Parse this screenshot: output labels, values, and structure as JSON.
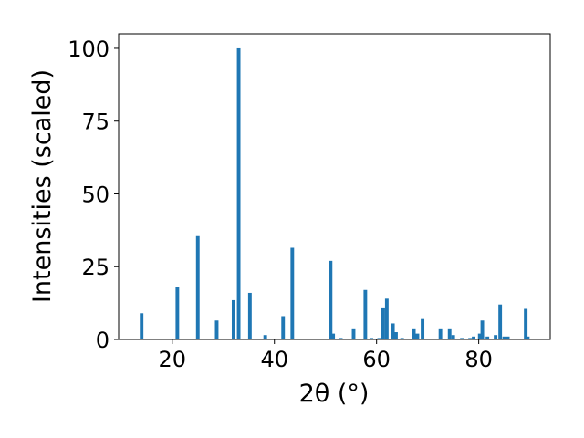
{
  "chart_data": {
    "type": "bar",
    "title": "",
    "xlabel": "2θ (°)",
    "ylabel": "Intensities (scaled)",
    "xlim": [
      9.5,
      94
    ],
    "ylim": [
      0,
      105
    ],
    "xticks": [
      20,
      40,
      60,
      80
    ],
    "yticks": [
      0,
      25,
      50,
      75,
      100
    ],
    "grid": false,
    "legend": "none",
    "bar_color": "#1f77b4",
    "bar_width": 0.7,
    "x": [
      14.0,
      21.0,
      25.0,
      28.7,
      32.0,
      33.0,
      35.2,
      38.2,
      41.7,
      43.5,
      51.0,
      51.5,
      53.0,
      55.5,
      57.8,
      59.0,
      60.5,
      61.3,
      62.0,
      63.2,
      63.8,
      65.0,
      67.3,
      68.0,
      69.0,
      72.5,
      74.3,
      75.0,
      76.7,
      78.3,
      79.0,
      80.2,
      80.7,
      81.7,
      83.3,
      84.2,
      85.0,
      85.7,
      89.2,
      89.6
    ],
    "values": [
      9,
      18,
      35.5,
      6.5,
      13.5,
      100,
      16,
      1.5,
      8,
      31.5,
      27,
      2,
      0.5,
      3.5,
      17,
      0.5,
      0.5,
      11,
      14,
      5.5,
      2.5,
      0.5,
      3.5,
      2,
      7,
      3.5,
      3.5,
      1.5,
      0.5,
      0.5,
      1,
      2,
      6.5,
      1,
      1.5,
      12,
      1,
      1,
      10.5,
      1
    ]
  }
}
